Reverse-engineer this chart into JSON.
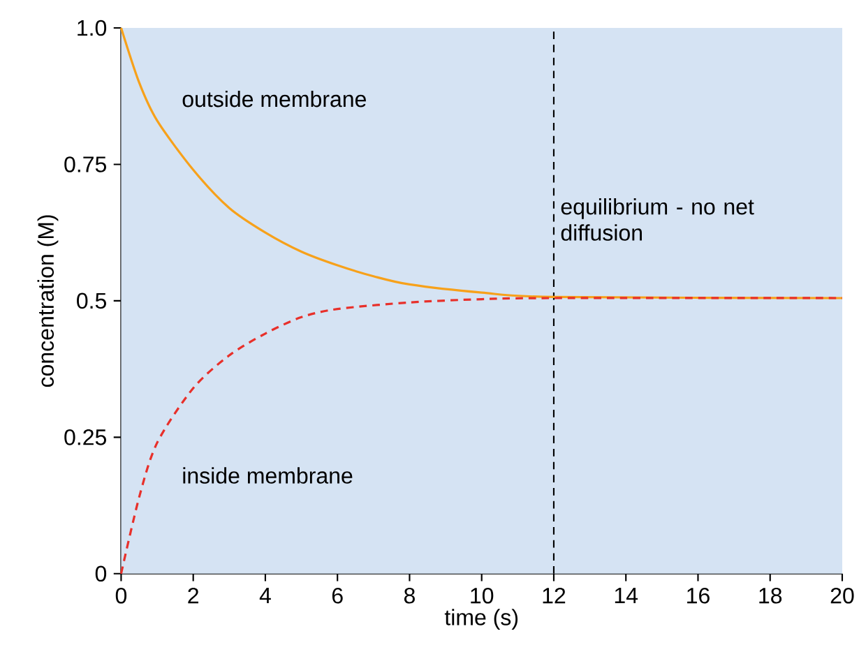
{
  "chart_data": {
    "type": "line",
    "xlabel": "time (s)",
    "ylabel": "concentration (M)",
    "xlim": [
      0,
      20
    ],
    "ylim": [
      0,
      1
    ],
    "xticks": [
      0,
      2,
      4,
      6,
      8,
      10,
      12,
      14,
      16,
      18,
      20
    ],
    "yticks": [
      0,
      0.25,
      0.5,
      0.75,
      {
        "value": 1,
        "label": "1.0"
      }
    ],
    "legend": false,
    "grid": false,
    "series": [
      {
        "name": "outside membrane",
        "color": "#f7a11a",
        "line_style": "solid",
        "x": [
          0,
          0.5,
          1,
          2,
          3,
          4,
          5,
          6,
          7,
          8,
          10,
          12,
          20
        ],
        "values": [
          1.0,
          0.9,
          0.83,
          0.74,
          0.67,
          0.625,
          0.59,
          0.565,
          0.545,
          0.53,
          0.515,
          0.507,
          0.505
        ]
      },
      {
        "name": "inside membrane",
        "color": "#e8302a",
        "line_style": "dashed",
        "x": [
          0,
          0.5,
          1,
          2,
          3,
          4,
          5,
          6,
          8,
          10,
          12,
          20
        ],
        "values": [
          0,
          0.14,
          0.24,
          0.34,
          0.4,
          0.44,
          0.47,
          0.485,
          0.497,
          0.503,
          0.505,
          0.505
        ]
      }
    ],
    "ref_lines": [
      {
        "axis": "x",
        "value": 12,
        "label": "equilibrium - no net diffusion",
        "color": "#000000",
        "line_style": "dashed"
      }
    ]
  }
}
